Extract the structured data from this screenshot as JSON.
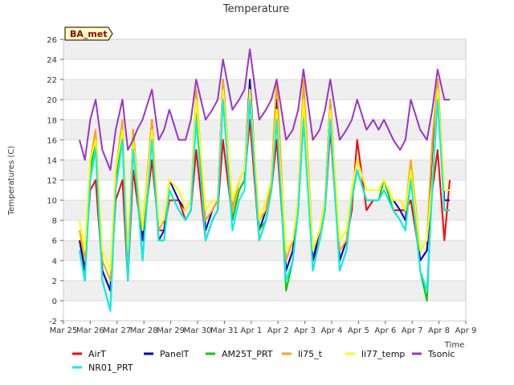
{
  "chart_data": {
    "type": "line",
    "title": "Temperature",
    "xlabel": "Time",
    "ylabel": "Temperatures (C)",
    "badge": "BA_met",
    "ylim": [
      -2,
      26
    ],
    "yticks": [
      -2,
      0,
      2,
      4,
      6,
      8,
      10,
      12,
      14,
      16,
      18,
      20,
      22,
      24,
      26
    ],
    "xlim": [
      0,
      15
    ],
    "xticks": [
      0,
      1,
      2,
      3,
      4,
      5,
      6,
      7,
      8,
      9,
      10,
      11,
      12,
      13,
      14,
      15
    ],
    "xtick_labels": [
      "Mar 25",
      "Mar 26",
      "Mar 27",
      "Mar 28",
      "Mar 29",
      "Mar 30",
      "Mar 31",
      "Apr 1",
      "Apr 2",
      "Apr 3",
      "Apr 4",
      "Apr 5",
      "Apr 6",
      "Apr 7",
      "Apr 8",
      "Apr 9"
    ],
    "grid": "horizontal bands",
    "legend_position": "bottom",
    "series": [
      {
        "name": "AirT",
        "color": "#ff0000",
        "x": [
          0.6,
          0.8,
          1.0,
          1.2,
          1.45,
          1.75,
          1.95,
          2.2,
          2.4,
          2.6,
          2.75,
          2.95,
          3.3,
          3.55,
          3.75,
          3.95,
          4.3,
          4.55,
          4.75,
          4.95,
          5.3,
          5.55,
          5.75,
          5.95,
          6.3,
          6.55,
          6.75,
          6.95,
          7.3,
          7.55,
          7.75,
          7.95,
          8.3,
          8.55,
          8.75,
          8.95,
          9.3,
          9.55,
          9.75,
          9.95,
          10.3,
          10.55,
          10.75,
          10.95,
          11.3,
          11.55,
          11.75,
          11.95,
          12.3,
          12.55,
          12.75,
          12.95,
          13.3,
          13.55,
          13.75,
          13.95,
          14.2,
          14.4
        ],
        "y": [
          6,
          4,
          11,
          12,
          3,
          1,
          10,
          12,
          2,
          13,
          10,
          6,
          14,
          7,
          7,
          10,
          10,
          8,
          9,
          15,
          6,
          8,
          9,
          16,
          8,
          11,
          12,
          18,
          6,
          8,
          11,
          16,
          3,
          5,
          9,
          18,
          4,
          6,
          9,
          17,
          4,
          6,
          9,
          16,
          9,
          10,
          10,
          11,
          9,
          9,
          9,
          10,
          4,
          5,
          11,
          15,
          6,
          12
        ]
      },
      {
        "name": "PanelT",
        "color": "#0000cc",
        "x": [
          0.6,
          0.8,
          1.0,
          1.2,
          1.45,
          1.75,
          1.95,
          2.2,
          2.4,
          2.6,
          2.75,
          2.95,
          3.3,
          3.55,
          3.75,
          3.95,
          4.3,
          4.55,
          4.75,
          4.95,
          5.3,
          5.55,
          5.75,
          5.95,
          6.3,
          6.55,
          6.75,
          6.95,
          7.3,
          7.55,
          7.75,
          7.95,
          8.3,
          8.55,
          8.75,
          8.95,
          9.3,
          9.55,
          9.75,
          9.95,
          10.3,
          10.55,
          10.75,
          10.95,
          11.3,
          11.55,
          11.75,
          11.95,
          12.3,
          12.55,
          12.75,
          12.95,
          13.3,
          13.55,
          13.75,
          13.95,
          14.2,
          14.4
        ],
        "y": [
          6,
          3,
          14,
          16,
          3,
          1,
          13,
          17,
          3,
          17,
          12,
          6,
          18,
          6,
          7,
          12,
          10,
          9,
          10,
          20,
          7,
          9,
          10,
          22,
          9,
          12,
          13,
          22,
          7,
          9,
          12,
          20,
          3,
          5,
          10,
          20,
          4,
          7,
          10,
          20,
          4,
          6,
          11,
          14,
          11,
          11,
          11,
          12,
          10,
          9,
          8,
          13,
          4,
          5,
          13,
          22,
          10,
          10
        ]
      },
      {
        "name": "AM25T_PRT",
        "color": "#00cc00",
        "x": [
          0.6,
          0.8,
          1.0,
          1.2,
          1.45,
          1.75,
          1.95,
          2.2,
          2.4,
          2.6,
          2.75,
          2.95,
          3.3,
          3.55,
          3.75,
          3.95,
          4.3,
          4.55,
          4.75,
          4.95,
          5.3,
          5.55,
          5.75,
          5.95,
          6.3,
          6.55,
          6.75,
          6.95,
          7.3,
          7.55,
          7.75,
          7.95,
          8.3,
          8.55,
          8.75,
          8.95,
          9.3,
          9.55,
          9.75,
          9.95,
          10.3,
          10.55,
          10.75,
          10.95,
          11.3,
          11.55,
          11.75,
          11.95,
          12.3,
          12.55,
          12.75,
          12.95,
          13.3,
          13.55,
          13.75,
          13.95,
          14.2,
          14.4
        ],
        "y": [
          5,
          2,
          13,
          16,
          2,
          -1,
          12,
          17,
          2,
          16,
          11,
          4,
          17,
          6,
          6,
          11,
          9,
          8,
          9,
          19,
          6,
          8,
          9,
          21,
          8,
          11,
          12,
          21,
          7,
          8,
          11,
          19,
          1,
          4,
          9,
          19,
          3,
          6,
          9,
          19,
          3,
          5,
          10,
          13,
          10,
          10,
          10,
          12,
          9,
          8,
          7,
          13,
          3,
          0,
          12,
          21,
          9,
          9
        ]
      },
      {
        "name": "li75_t",
        "color": "#ffa500",
        "x": [
          0.6,
          0.8,
          1.0,
          1.2,
          1.45,
          1.75,
          1.95,
          2.2,
          2.4,
          2.6,
          2.75,
          2.95,
          3.3,
          3.55,
          3.75,
          3.95,
          4.3,
          4.55,
          4.75,
          4.95,
          5.3,
          5.55,
          5.75,
          5.95,
          6.3,
          6.55,
          6.75,
          6.95,
          7.3,
          7.55,
          7.75,
          7.95,
          8.3,
          8.55,
          8.75,
          8.95,
          9.3,
          9.55,
          9.75,
          9.95,
          10.3,
          10.55,
          10.75,
          10.95,
          11.3,
          11.55,
          11.75,
          11.95,
          12.3,
          12.55,
          12.75,
          12.95,
          13.3,
          13.55,
          13.75,
          13.95,
          14.2,
          14.4
        ],
        "y": [
          7,
          4,
          14,
          17,
          4,
          2,
          13,
          18,
          4,
          17,
          12,
          7,
          18,
          7,
          8,
          12,
          11,
          9,
          10,
          21,
          8,
          9,
          10,
          22,
          9,
          12,
          13,
          21,
          8,
          9,
          12,
          22,
          4,
          6,
          10,
          22,
          5,
          7,
          10,
          20,
          5,
          6,
          11,
          14,
          11,
          11,
          11,
          12,
          10,
          10,
          9,
          14,
          5,
          6,
          16,
          22,
          11,
          11
        ]
      },
      {
        "name": "li77_temp",
        "color": "#ffff00",
        "x": [
          0.6,
          0.8,
          1.0,
          1.2,
          1.45,
          1.75,
          1.95,
          2.2,
          2.4,
          2.6,
          2.75,
          2.95,
          3.3,
          3.55,
          3.75,
          3.95,
          4.3,
          4.55,
          4.75,
          4.95,
          5.3,
          5.55,
          5.75,
          5.95,
          6.3,
          6.55,
          6.75,
          6.95,
          7.3,
          7.55,
          7.75,
          7.95,
          8.3,
          8.55,
          8.75,
          8.95,
          9.3,
          9.55,
          9.75,
          9.95,
          10.3,
          10.55,
          10.75,
          10.95,
          11.3,
          11.55,
          11.75,
          11.95,
          12.3,
          12.55,
          12.75,
          12.95,
          13.3,
          13.55,
          13.75,
          13.95,
          14.2,
          14.4
        ],
        "y": [
          8,
          5,
          14,
          16,
          5,
          3,
          13,
          17,
          5,
          16,
          12,
          7,
          17,
          8,
          8,
          12,
          11,
          9,
          10,
          20,
          9,
          10,
          10,
          21,
          10,
          12,
          13,
          21,
          8,
          10,
          12,
          19,
          5,
          6,
          10,
          20,
          5,
          7,
          10,
          19,
          6,
          7,
          11,
          14,
          11,
          11,
          11,
          12,
          10,
          10,
          9,
          13,
          5,
          6,
          12,
          21,
          11,
          11
        ]
      },
      {
        "name": "Tsonic",
        "color": "#9933cc",
        "x": [
          0.6,
          0.8,
          1.0,
          1.2,
          1.45,
          1.75,
          1.95,
          2.2,
          2.4,
          2.6,
          2.75,
          2.95,
          3.3,
          3.55,
          3.75,
          3.95,
          4.3,
          4.55,
          4.75,
          4.95,
          5.3,
          5.55,
          5.75,
          5.95,
          6.3,
          6.55,
          6.75,
          6.95,
          7.3,
          7.55,
          7.75,
          7.95,
          8.3,
          8.55,
          8.75,
          8.95,
          9.3,
          9.55,
          9.75,
          9.95,
          10.3,
          10.55,
          10.75,
          10.95,
          11.3,
          11.55,
          11.75,
          11.95,
          12.3,
          12.55,
          12.75,
          12.95,
          13.3,
          13.55,
          13.75,
          13.95,
          14.2,
          14.4
        ],
        "y": [
          16,
          14,
          18,
          20,
          15,
          13,
          17,
          20,
          15,
          16,
          17,
          18,
          21,
          16,
          17,
          19,
          16,
          16,
          18,
          22,
          18,
          19,
          20,
          24,
          19,
          20,
          21,
          25,
          18,
          19,
          20,
          22,
          16,
          17,
          19,
          23,
          16,
          17,
          19,
          22,
          16,
          17,
          18,
          20,
          17,
          18,
          17,
          18,
          16,
          15,
          16,
          20,
          17,
          16,
          19,
          23,
          20,
          20
        ]
      },
      {
        "name": "NR01_PRT",
        "color": "#00eeee",
        "x": [
          0.6,
          0.8,
          1.0,
          1.2,
          1.45,
          1.75,
          1.95,
          2.2,
          2.4,
          2.6,
          2.75,
          2.95,
          3.3,
          3.55,
          3.75,
          3.95,
          4.3,
          4.55,
          4.75,
          4.95,
          5.3,
          5.55,
          5.75,
          5.95,
          6.3,
          6.55,
          6.75,
          6.95,
          7.3,
          7.55,
          7.75,
          7.95,
          8.3,
          8.55,
          8.75,
          8.95,
          9.3,
          9.55,
          9.75,
          9.95,
          10.3,
          10.55,
          10.75,
          10.95,
          11.3,
          11.55,
          11.75,
          11.95,
          12.3,
          12.55,
          12.75,
          12.95,
          13.3,
          13.55,
          13.75,
          13.95,
          14.2,
          14.4
        ],
        "y": [
          5,
          2,
          12,
          15,
          2,
          -1,
          11,
          16,
          2,
          15,
          11,
          4,
          16,
          6,
          6,
          11,
          9,
          8,
          9,
          18,
          6,
          8,
          9,
          20,
          7,
          10,
          11,
          20,
          6,
          8,
          11,
          18,
          2,
          4,
          9,
          18,
          3,
          6,
          9,
          18,
          3,
          5,
          10,
          13,
          10,
          10,
          10,
          11,
          9,
          8,
          7,
          12,
          3,
          1,
          11,
          20,
          9,
          9
        ]
      }
    ]
  }
}
